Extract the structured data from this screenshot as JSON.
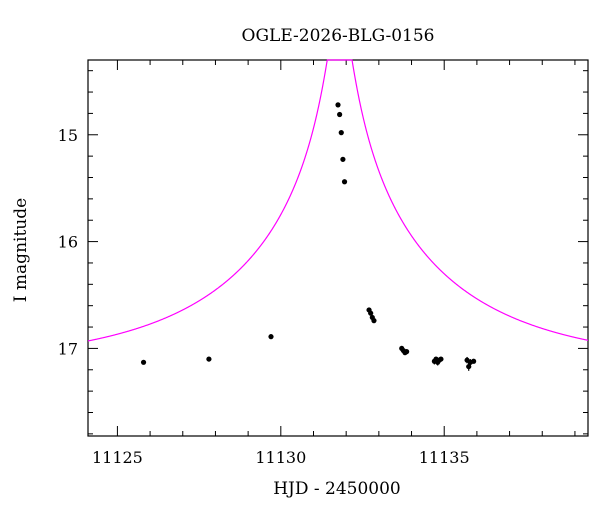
{
  "chart_data": {
    "type": "scatter",
    "title": "OGLE-2026-BLG-0156",
    "xlabel": "HJD - 2450000",
    "ylabel": "I magnitude",
    "xlim": [
      11124.1,
      11139.4
    ],
    "ylim": [
      17.82,
      14.3
    ],
    "y_inverted": true,
    "x_ticks": [
      11125,
      11130,
      11135
    ],
    "y_ticks": [
      15,
      16,
      17
    ],
    "grid": false,
    "colors": {
      "model": "#ff00ff",
      "points": "#000000",
      "axes": "#000000"
    },
    "observations": {
      "x": [
        11125.8,
        11127.8,
        11129.7,
        11131.75,
        11131.8,
        11131.85,
        11131.9,
        11131.95,
        11132.7,
        11132.75,
        11132.8,
        11132.85,
        11133.7,
        11133.75,
        11133.8,
        11133.85,
        11134.7,
        11134.75,
        11134.8,
        11134.85,
        11134.9,
        11135.7,
        11135.75,
        11135.8,
        11135.9
      ],
      "y": [
        17.13,
        17.1,
        16.89,
        14.72,
        14.81,
        14.98,
        15.23,
        15.44,
        16.64,
        16.67,
        16.71,
        16.74,
        17.0,
        17.02,
        17.04,
        17.03,
        17.12,
        17.1,
        17.13,
        17.11,
        17.1,
        17.11,
        17.17,
        17.13,
        17.12
      ],
      "yerr": [
        0.02,
        0.02,
        0.02,
        0.02,
        0.02,
        0.02,
        0.02,
        0.02,
        0.02,
        0.02,
        0.02,
        0.02,
        0.02,
        0.02,
        0.02,
        0.02,
        0.03,
        0.02,
        0.03,
        0.02,
        0.02,
        0.03,
        0.04,
        0.03,
        0.02
      ]
    },
    "model": {
      "type": "point-lens",
      "t0": 11131.8,
      "u0": 0.042,
      "tE": 6.5,
      "baseline_mag": 17.16
    }
  }
}
